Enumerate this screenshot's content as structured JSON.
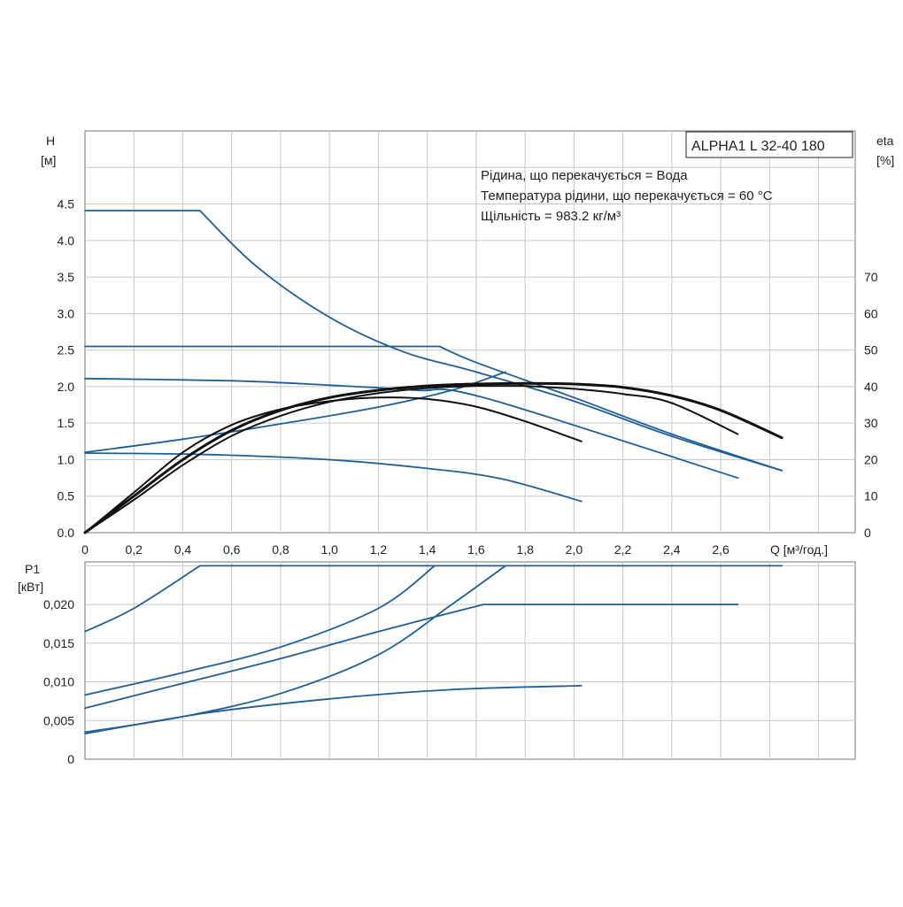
{
  "chart_data": [
    {
      "type": "line",
      "title": "ALPHA1 L 32-40 180",
      "annotations": [
        "Рідина, що перекачується = Вода",
        "Температура рідини, що перекачується = 60 °C",
        "Щільність = 983.2 кг/м³"
      ],
      "xlabel": "Q [м³/год.]",
      "ylabel": "H",
      "ylabel_unit": "[м]",
      "y2label": "eta",
      "y2label_unit": "[%]",
      "xlim": [
        0,
        3.15
      ],
      "ylim": [
        0,
        5.5
      ],
      "y2lim": [
        0,
        110
      ],
      "x_ticks": [
        "0",
        "0,2",
        "0,4",
        "0,6",
        "0,8",
        "1,0",
        "1,2",
        "1,4",
        "1,6",
        "1,8",
        "2,0",
        "2,2",
        "2,4",
        "2,6"
      ],
      "y_ticks": [
        "0.0",
        "0.5",
        "1.0",
        "1.5",
        "2.0",
        "2.5",
        "3.0",
        "3.5",
        "4.0",
        "4.5"
      ],
      "y2_ticks": [
        "0",
        "10",
        "20",
        "30",
        "40",
        "50",
        "60",
        "70"
      ],
      "grid": true,
      "series": [
        {
          "kind": "head",
          "color": "#1f5f96",
          "points": [
            [
              0,
              4.41
            ],
            [
              0.47,
              4.41
            ],
            [
              0.7,
              3.65
            ],
            [
              1.0,
              2.95
            ],
            [
              1.3,
              2.48
            ],
            [
              1.6,
              2.2
            ],
            [
              2.0,
              1.8
            ],
            [
              2.4,
              1.32
            ],
            [
              2.85,
              0.85
            ]
          ]
        },
        {
          "kind": "head",
          "color": "#1f5f96",
          "points": [
            [
              0,
              2.55
            ],
            [
              1.45,
              2.55
            ],
            [
              1.6,
              2.33
            ],
            [
              2.0,
              1.85
            ],
            [
              2.4,
              1.35
            ],
            [
              2.85,
              0.85
            ]
          ]
        },
        {
          "kind": "head",
          "color": "#1f5f96",
          "points": [
            [
              0,
              2.11
            ],
            [
              0.6,
              2.08
            ],
            [
              1.0,
              2.02
            ],
            [
              1.35,
              1.95
            ],
            [
              1.63,
              1.85
            ],
            [
              2.67,
              0.75
            ]
          ]
        },
        {
          "kind": "head",
          "color": "#1f5f96",
          "points": [
            [
              0,
              1.09
            ],
            [
              0.5,
              1.07
            ],
            [
              1.0,
              1.0
            ],
            [
              1.4,
              0.88
            ],
            [
              1.7,
              0.74
            ],
            [
              2.03,
              0.43
            ]
          ]
        },
        {
          "kind": "head",
          "color": "#1f5f96",
          "points": [
            [
              0,
              1.1
            ],
            [
              0.4,
              1.28
            ],
            [
              0.8,
              1.49
            ],
            [
              1.2,
              1.72
            ],
            [
              1.5,
              1.95
            ],
            [
              1.72,
              2.2
            ]
          ]
        },
        {
          "kind": "efficiency",
          "color": "#111111",
          "width": 3,
          "points": [
            [
              0,
              0
            ],
            [
              0.2,
              10
            ],
            [
              0.4,
              20
            ],
            [
              0.6,
              28
            ],
            [
              0.8,
              33.5
            ],
            [
              1.0,
              37
            ],
            [
              1.2,
              39
            ],
            [
              1.4,
              40.2
            ],
            [
              1.6,
              40.7
            ],
            [
              1.8,
              40.9
            ],
            [
              2.0,
              40.7
            ],
            [
              2.2,
              39.8
            ],
            [
              2.4,
              37.5
            ],
            [
              2.6,
              33.5
            ],
            [
              2.85,
              26
            ]
          ]
        },
        {
          "kind": "efficiency",
          "color": "#111111",
          "width": 2,
          "points": [
            [
              0,
              0
            ],
            [
              0.2,
              9
            ],
            [
              0.4,
              18.5
            ],
            [
              0.6,
              26.5
            ],
            [
              0.8,
              32
            ],
            [
              1.0,
              35.8
            ],
            [
              1.2,
              38.2
            ],
            [
              1.4,
              39.6
            ],
            [
              1.6,
              40.2
            ],
            [
              1.8,
              40.2
            ],
            [
              2.0,
              39.4
            ],
            [
              2.2,
              38
            ],
            [
              2.4,
              35.5
            ],
            [
              2.67,
              27
            ]
          ]
        },
        {
          "kind": "efficiency",
          "color": "#111111",
          "width": 2,
          "points": [
            [
              0,
              0
            ],
            [
              0.2,
              11
            ],
            [
              0.4,
              22
            ],
            [
              0.6,
              29.5
            ],
            [
              0.8,
              33.8
            ],
            [
              1.0,
              36
            ],
            [
              1.2,
              37
            ],
            [
              1.4,
              36.6
            ],
            [
              1.6,
              34.5
            ],
            [
              1.8,
              30.5
            ],
            [
              2.03,
              25
            ]
          ]
        }
      ]
    },
    {
      "type": "line",
      "ylabel": "P1",
      "ylabel_unit": "[кВт]",
      "xlim": [
        0,
        3.15
      ],
      "ylim": [
        0,
        0.0255
      ],
      "y_ticks": [
        "0",
        "0,005",
        "0,010",
        "0,015",
        "0,020"
      ],
      "grid": true,
      "series": [
        {
          "kind": "power",
          "color": "#1f5f96",
          "points": [
            [
              0,
              0.0165
            ],
            [
              0.2,
              0.0195
            ],
            [
              0.47,
              0.025
            ],
            [
              2.85,
              0.025
            ]
          ]
        },
        {
          "kind": "power",
          "color": "#1f5f96",
          "points": [
            [
              0,
              0.0083
            ],
            [
              0.4,
              0.0112
            ],
            [
              0.8,
              0.0145
            ],
            [
              1.2,
              0.0195
            ],
            [
              1.43,
              0.025
            ]
          ]
        },
        {
          "kind": "power",
          "color": "#1f5f96",
          "points": [
            [
              0,
              0.0066
            ],
            [
              0.4,
              0.0098
            ],
            [
              0.8,
              0.013
            ],
            [
              1.2,
              0.0165
            ],
            [
              1.63,
              0.02
            ],
            [
              2.67,
              0.02
            ]
          ]
        },
        {
          "kind": "power",
          "color": "#1f5f96",
          "points": [
            [
              0,
              0.0035
            ],
            [
              0.4,
              0.0055
            ],
            [
              0.8,
              0.0085
            ],
            [
              1.2,
              0.0135
            ],
            [
              1.5,
              0.02
            ],
            [
              1.72,
              0.025
            ]
          ]
        },
        {
          "kind": "power",
          "color": "#1f5f96",
          "points": [
            [
              0,
              0.0033
            ],
            [
              0.5,
              0.006
            ],
            [
              1.0,
              0.0078
            ],
            [
              1.5,
              0.009
            ],
            [
              2.03,
              0.0095
            ]
          ]
        }
      ]
    }
  ]
}
